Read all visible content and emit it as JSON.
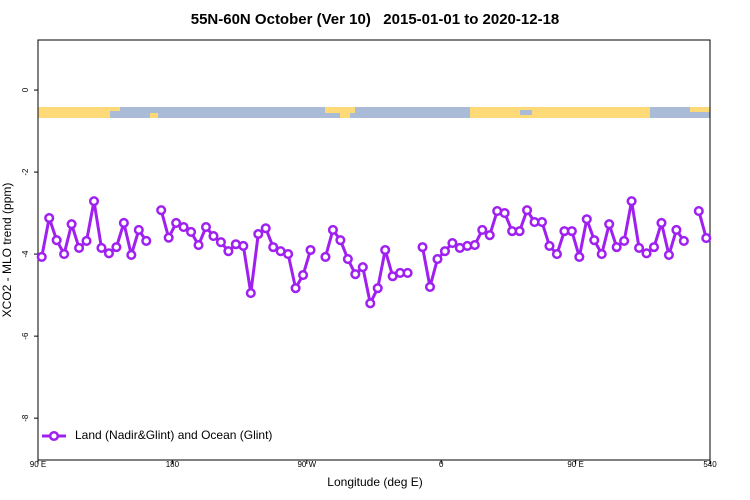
{
  "chart_data": {
    "type": "line",
    "title": "55N-60N October (Ver 10)   2015-01-01 to 2020-12-18",
    "x_label": "Longitude (deg E)",
    "y_label": "XCO2 - MLO trend (ppm)",
    "x": [
      92.5,
      97.5,
      102.5,
      107.5,
      112.5,
      117.5,
      122.5,
      127.5,
      132.5,
      137.5,
      142.5,
      147.5,
      152.5,
      157.5,
      162.5,
      167.5,
      172.5,
      177.5,
      182.5,
      187.5,
      192.5,
      197.5,
      202.5,
      207.5,
      212.5,
      217.5,
      222.5,
      227.5,
      232.5,
      237.5,
      242.5,
      247.5,
      252.5,
      257.5,
      262.5,
      267.5,
      272.5,
      277.5,
      282.5,
      287.5,
      292.5,
      297.5,
      302.5,
      307.5,
      312.5,
      317.5,
      322.5,
      327.5,
      332.5,
      337.5,
      342.5,
      347.5,
      352.5,
      357.5,
      362.5,
      367.5,
      372.5,
      377.5,
      382.5,
      387.5,
      392.5,
      397.5,
      402.5,
      407.5,
      412.5,
      417.5,
      422.5,
      427.5,
      432.5,
      437.5,
      442.5,
      447.5,
      452.5,
      457.5,
      462.5,
      467.5,
      472.5,
      477.5,
      482.5,
      487.5,
      492.5,
      497.5,
      502.5,
      507.5,
      512.5,
      517.5,
      522.5,
      527.5,
      532.5,
      537.5
    ],
    "series": [
      {
        "name": "Land (Nadir&Glint) and Ocean (Glint)",
        "color": "#a020f0",
        "values": [
          -4.07,
          -3.12,
          -3.66,
          -4.0,
          -3.27,
          -3.85,
          -3.68,
          -2.71,
          -3.85,
          -3.98,
          -3.83,
          -3.24,
          -4.02,
          -3.41,
          -3.68,
          null,
          -2.93,
          -3.6,
          -3.24,
          -3.34,
          -3.46,
          -3.78,
          -3.34,
          -3.56,
          -3.71,
          -3.93,
          -3.76,
          -3.8,
          -4.95,
          -3.51,
          -3.37,
          -3.83,
          -3.93,
          -4.0,
          -4.83,
          -4.51,
          -3.9,
          null,
          -4.07,
          -3.41,
          -3.66,
          -4.12,
          -4.49,
          -4.32,
          -5.2,
          -4.83,
          -3.9,
          -4.54,
          -4.46,
          -4.46,
          null,
          -3.83,
          -4.8,
          -4.12,
          -3.93,
          -3.73,
          -3.85,
          -3.8,
          -3.78,
          -3.41,
          -3.54,
          -2.95,
          -3.0,
          -3.44,
          -3.44,
          -2.93,
          -3.22,
          -3.22,
          -3.8,
          -4.0,
          -3.44,
          -3.44,
          -4.07,
          -3.15,
          -3.66,
          -4.0,
          -3.27,
          -3.83,
          -3.68,
          -2.71,
          -3.85,
          -3.98,
          -3.83,
          -3.24,
          -4.02,
          -3.41,
          -3.68,
          null,
          -2.95,
          -3.61
        ]
      }
    ],
    "xlim": [
      90,
      540
    ],
    "xticks": [
      {
        "value": 90,
        "label": "90 E"
      },
      180,
      {
        "value": 270,
        "label": "90 W"
      },
      {
        "value": 360,
        "label": "0"
      },
      {
        "value": 450,
        "label": "90 E"
      },
      540
    ],
    "ylim": [
      -9.02,
      1.22
    ],
    "yticks": [
      0,
      -2,
      -4,
      -6,
      -8
    ],
    "legend": "bottom-left"
  }
}
